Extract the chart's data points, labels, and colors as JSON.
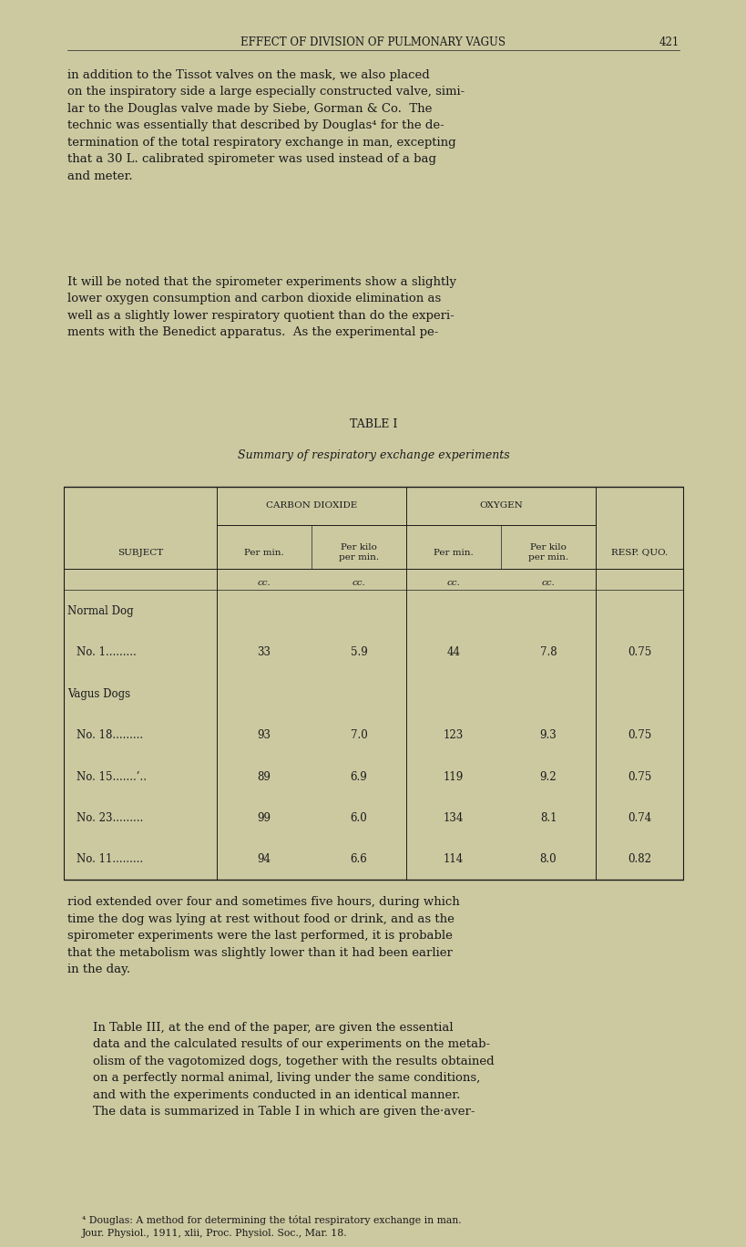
{
  "bg_color": "#ccc9a1",
  "text_color": "#1a1a1a",
  "page_width": 8.0,
  "page_height": 13.3,
  "header_text": "EFFECT OF DIVISION OF PULMONARY VAGUS",
  "header_page_num": "421",
  "paragraph1": "in addition to the Tissot valves on the mask, we also placed\non the inspiratory side a large especially constructed valve, simi-\nlar to the Douglas valve made by Siebe, Gorman & Co.  The\ntechnic was essentially that described by Douglas⁴ for the de-\ntermination of the total respiratory exchange in man, excepting\nthat a 30 L. calibrated spirometer was used instead of a bag\nand meter.",
  "paragraph2": "It will be noted that the spirometer experiments show a slightly\nlower oxygen consumption and carbon dioxide elimination as\nwell as a slightly lower respiratory quotient than do the experi-\nments with the Benedict apparatus.  As the experimental pe-",
  "table_title": "TABLE I",
  "table_subtitle": "Summary of respiratory exchange experiments",
  "col_header1": "CARBON DIOXIDE",
  "col_header2": "OXYGEN",
  "col_sub1a": "Per min.",
  "col_sub1b": "Per kilo\nper min.",
  "col_sub2a": "Per min.",
  "col_sub2b": "Per kilo\nper min.",
  "col_sub_units": "cc.",
  "col_resp_quo": "RESP. QUO.",
  "subject_label": "SUBJECT",
  "row_group1": "Normal Dog",
  "row1_label": "No. 1.........",
  "row1_data": [
    33,
    5.9,
    44,
    7.8,
    0.75
  ],
  "row_group2": "Vagus Dogs",
  "row2_label": "No. 18.........",
  "row2_data": [
    93,
    7.0,
    123,
    9.3,
    0.75
  ],
  "row3_label": "No. 15.......’..",
  "row3_data": [
    89,
    6.9,
    119,
    9.2,
    0.75
  ],
  "row4_label": "No. 23.........",
  "row4_data": [
    99,
    6.0,
    134,
    8.1,
    0.74
  ],
  "row5_label": "No. 11.........",
  "row5_data": [
    94,
    6.6,
    114,
    8.0,
    0.82
  ],
  "paragraph3": "riod extended over four and sometimes five hours, during which\ntime the dog was lying at rest without food or drink, and as the\nspirometer experiments were the last performed, it is probable\nthat the metabolism was slightly lower than it had been earlier\nin the day.",
  "paragraph4": "In Table III, at the end of the paper, are given the essential\ndata and the calculated results of our experiments on the metab-\nolism of the vagotomized dogs, together with the results obtained\non a perfectly normal animal, living under the same conditions,\nand with the experiments conducted in an identical manner.\nThe data is summarized in Table I in which are given the·aver-",
  "footnote": "⁴ Douglas: A method for determining the tótal respiratory exchange in man.\nJour. Physiol., 1911, xlii, Proc. Physiol. Soc., Mar. 18."
}
